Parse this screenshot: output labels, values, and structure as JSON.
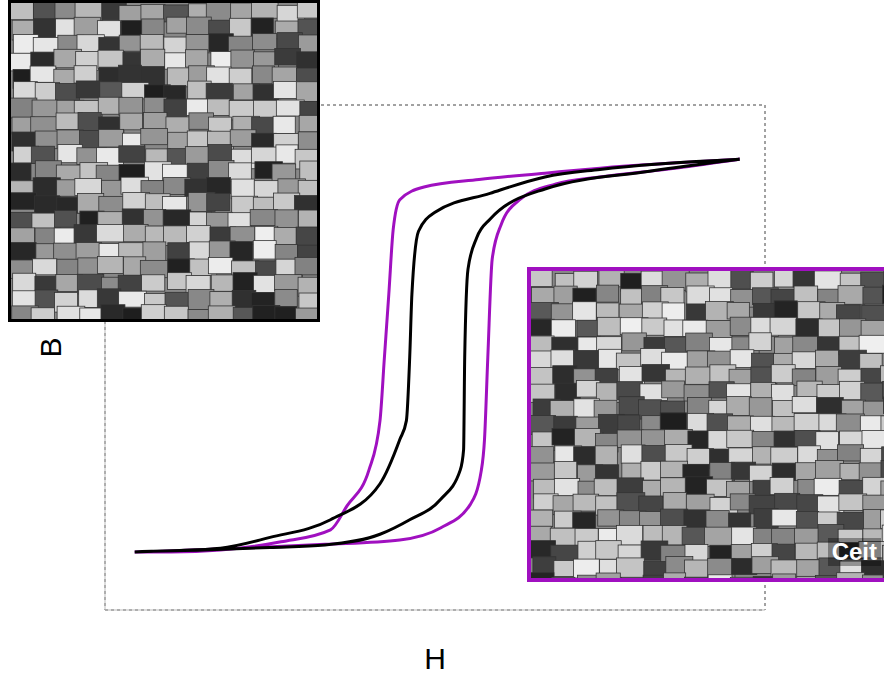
{
  "chart_data": {
    "type": "line",
    "xlabel": "H",
    "ylabel": "B",
    "xlim": [
      0,
      6
    ],
    "ylim": [
      0,
      8
    ],
    "xticks": [
      0,
      1,
      2,
      3,
      4,
      5,
      6
    ],
    "yticks": [
      0,
      1,
      2,
      3,
      4,
      5,
      6,
      7,
      8
    ],
    "grid": true,
    "tick_labels": false,
    "annotations": [
      "Ceit"
    ],
    "series": [
      {
        "color": "#a010c0",
        "x": [
          5.77,
          4.5,
          4.0,
          3.4,
          2.9,
          2.68,
          2.62,
          2.58,
          2.54,
          2.5,
          2.4,
          2.2,
          2.05,
          1.6,
          1.05,
          0.6,
          0.27,
          0.8,
          1.5,
          2.0,
          2.68,
          3.05,
          3.32,
          3.42,
          3.45,
          3.48,
          3.52,
          3.6,
          3.77,
          4.1,
          4.5,
          5.2,
          5.77
        ],
        "values": [
          7.14,
          7.0,
          6.92,
          6.82,
          6.7,
          6.5,
          6.03,
          5.0,
          4.0,
          3.0,
          2.22,
          1.65,
          1.27,
          1.08,
          0.95,
          0.92,
          0.92,
          0.95,
          1.0,
          1.04,
          1.11,
          1.3,
          1.67,
          2.2,
          2.7,
          4.0,
          5.56,
          6.1,
          6.5,
          6.75,
          6.86,
          7.0,
          7.14
        ],
        "line_style": "solid"
      },
      {
        "color": "#000000",
        "x": [
          5.77,
          4.5,
          4.0,
          3.5,
          3.0,
          2.85,
          2.79,
          2.77,
          2.74,
          2.68,
          2.5,
          2.05,
          1.5,
          1.05,
          0.6,
          0.27,
          0.9,
          1.5,
          2.0,
          2.5,
          2.77,
          3.05,
          3.23,
          3.26,
          3.27,
          3.3,
          3.38,
          3.5,
          4.0,
          4.95,
          5.77
        ],
        "values": [
          7.14,
          6.98,
          6.86,
          6.6,
          6.3,
          6.0,
          5.0,
          4.0,
          3.0,
          2.7,
          2.0,
          1.43,
          1.15,
          0.98,
          0.94,
          0.92,
          0.95,
          0.99,
          1.03,
          1.2,
          1.43,
          1.75,
          2.22,
          2.54,
          4.0,
          5.4,
          5.9,
          6.19,
          6.67,
          6.95,
          7.14
        ],
        "line_style": "solid"
      }
    ]
  }
}
